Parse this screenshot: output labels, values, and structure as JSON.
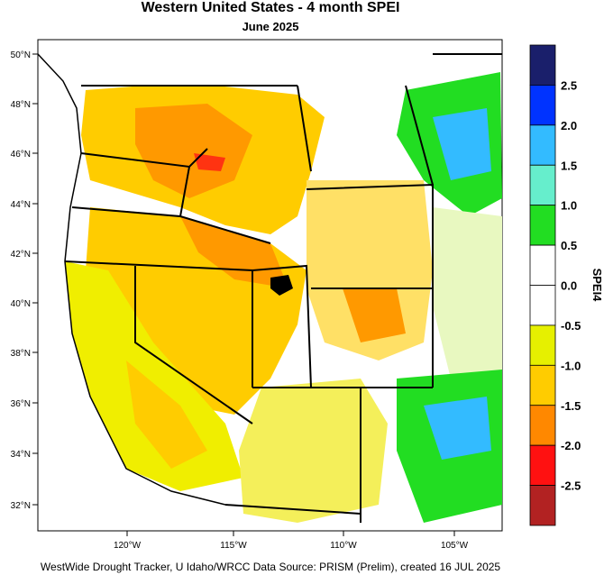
{
  "title": "Western United States - 4 month SPEI",
  "subtitle": "June 2025",
  "footer": "WestWide Drought Tracker, U Idaho/WRCC Data Source: PRISM (Prelim), created 16 JUL 2025",
  "lat_labels": [
    "50°N",
    "48°N",
    "46°N",
    "44°N",
    "42°N",
    "40°N",
    "38°N",
    "36°N",
    "34°N",
    "32°N"
  ],
  "lon_labels": [
    "120°W",
    "115°W",
    "110°W",
    "105°W"
  ],
  "colorbar": {
    "title": "SPEI4",
    "tick_labels": [
      "2.5",
      "2.0",
      "1.5",
      "1.0",
      "0.5",
      "0.0",
      "-0.5",
      "-1.0",
      "-1.5",
      "-2.0",
      "-2.5"
    ],
    "colors": [
      "#1a1f6b",
      "#0033ff",
      "#33bbff",
      "#66eecc",
      "#22dd22",
      "#ffffff",
      "#ffffff",
      "#e6f000",
      "#ffcc00",
      "#ff8800",
      "#ff1111",
      "#b22222"
    ]
  }
}
